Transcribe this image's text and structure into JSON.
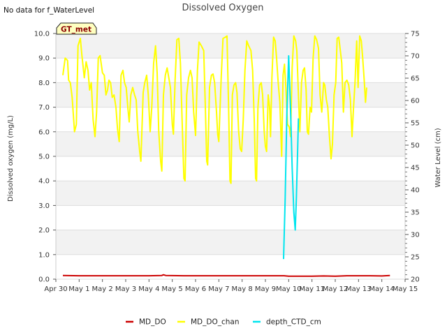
{
  "chart_data": {
    "type": "line",
    "title": "Dissolved Oxygen",
    "note": "No data for f_WaterLevel",
    "badge": "GT_met",
    "ylabel": "Dissolved oxygen (mg/L)",
    "y2label": "Water Level (cm)",
    "xlim": [
      "2024-04-30",
      "2024-05-15"
    ],
    "x_ticks": [
      "Apr 30",
      "May 1",
      "May 2",
      "May 3",
      "May 4",
      "May 5",
      "May 6",
      "May 7",
      "May 8",
      "May 9",
      "May 10",
      "May 11",
      "May 12",
      "May 13",
      "May 14",
      "May 15"
    ],
    "ylim": [
      0,
      10
    ],
    "y_ticks": [
      "0.0",
      "1.0",
      "2.0",
      "3.0",
      "4.0",
      "5.0",
      "6.0",
      "7.0",
      "8.0",
      "9.0",
      "10.0"
    ],
    "y2lim": [
      20,
      75
    ],
    "y2_ticks": [
      "20",
      "25",
      "30",
      "35",
      "40",
      "45",
      "50",
      "55",
      "60",
      "65",
      "70",
      "75"
    ],
    "grid": "horizontal bands",
    "legend_position": "bottom",
    "colors": {
      "MD_DO": "#cc0000",
      "MD_DO_chan": "#ffff00",
      "depth_CTD_cm": "#00e5ee"
    },
    "series": [
      {
        "name": "MD_DO",
        "axis": "left",
        "color": "#cc0000",
        "points": [
          [
            0.3,
            0.15
          ],
          [
            1.0,
            0.14
          ],
          [
            2.0,
            0.14
          ],
          [
            3.0,
            0.14
          ],
          [
            4.0,
            0.14
          ],
          [
            4.55,
            0.15
          ],
          [
            4.62,
            0.18
          ],
          [
            4.72,
            0.15
          ],
          [
            5.5,
            0.14
          ],
          [
            7.0,
            0.14
          ],
          [
            8.5,
            0.14
          ],
          [
            9.8,
            0.14
          ],
          [
            10.0,
            0.12
          ],
          [
            11.0,
            0.12
          ],
          [
            11.5,
            0.13
          ],
          [
            12.0,
            0.12
          ],
          [
            12.5,
            0.14
          ],
          [
            13.5,
            0.14
          ],
          [
            14.0,
            0.13
          ],
          [
            14.35,
            0.15
          ]
        ]
      },
      {
        "name": "MD_DO_chan",
        "axis": "left",
        "color": "#ffff00",
        "points": [
          [
            0.3,
            8.3
          ],
          [
            0.4,
            9.0
          ],
          [
            0.5,
            8.9
          ],
          [
            0.55,
            8.1
          ],
          [
            0.62,
            8.0
          ],
          [
            0.7,
            7.4
          ],
          [
            0.8,
            6.0
          ],
          [
            0.88,
            6.3
          ],
          [
            0.95,
            9.5
          ],
          [
            1.05,
            9.8
          ],
          [
            1.12,
            9.1
          ],
          [
            1.22,
            8.2
          ],
          [
            1.3,
            8.85
          ],
          [
            1.38,
            8.5
          ],
          [
            1.45,
            7.7
          ],
          [
            1.52,
            8.0
          ],
          [
            1.6,
            6.5
          ],
          [
            1.68,
            5.8
          ],
          [
            1.75,
            6.8
          ],
          [
            1.82,
            9.0
          ],
          [
            1.9,
            9.1
          ],
          [
            2.0,
            8.4
          ],
          [
            2.08,
            8.3
          ],
          [
            2.15,
            7.5
          ],
          [
            2.22,
            7.7
          ],
          [
            2.28,
            8.1
          ],
          [
            2.35,
            8.0
          ],
          [
            2.42,
            7.4
          ],
          [
            2.5,
            7.5
          ],
          [
            2.58,
            7.0
          ],
          [
            2.65,
            6.1
          ],
          [
            2.72,
            5.6
          ],
          [
            2.8,
            8.3
          ],
          [
            2.88,
            8.5
          ],
          [
            2.95,
            8.0
          ],
          [
            3.02,
            7.8
          ],
          [
            3.1,
            6.9
          ],
          [
            3.15,
            6.4
          ],
          [
            3.22,
            7.5
          ],
          [
            3.3,
            7.8
          ],
          [
            3.38,
            7.5
          ],
          [
            3.45,
            7.3
          ],
          [
            3.52,
            6.0
          ],
          [
            3.6,
            5.2
          ],
          [
            3.65,
            4.8
          ],
          [
            3.75,
            7.6
          ],
          [
            3.82,
            8.0
          ],
          [
            3.9,
            8.3
          ],
          [
            3.97,
            7.5
          ],
          [
            4.05,
            6.0
          ],
          [
            4.12,
            7.0
          ],
          [
            4.2,
            8.8
          ],
          [
            4.28,
            9.5
          ],
          [
            4.35,
            8.4
          ],
          [
            4.42,
            6.0
          ],
          [
            4.5,
            4.8
          ],
          [
            4.55,
            4.4
          ],
          [
            4.62,
            7.5
          ],
          [
            4.7,
            8.3
          ],
          [
            4.78,
            8.6
          ],
          [
            4.85,
            8.2
          ],
          [
            4.92,
            7.8
          ],
          [
            5.0,
            6.3
          ],
          [
            5.05,
            5.9
          ],
          [
            5.12,
            8.1
          ],
          [
            5.2,
            9.75
          ],
          [
            5.28,
            9.8
          ],
          [
            5.35,
            8.8
          ],
          [
            5.42,
            6.5
          ],
          [
            5.5,
            4.1
          ],
          [
            5.55,
            4.0
          ],
          [
            5.62,
            7.5
          ],
          [
            5.7,
            8.2
          ],
          [
            5.78,
            8.5
          ],
          [
            5.85,
            8.2
          ],
          [
            5.92,
            6.8
          ],
          [
            6.0,
            5.85
          ],
          [
            6.08,
            8.5
          ],
          [
            6.15,
            9.65
          ],
          [
            6.25,
            9.5
          ],
          [
            6.35,
            9.3
          ],
          [
            6.42,
            7.0
          ],
          [
            6.48,
            4.8
          ],
          [
            6.52,
            4.65
          ],
          [
            6.6,
            7.8
          ],
          [
            6.68,
            8.3
          ],
          [
            6.75,
            8.35
          ],
          [
            6.82,
            8.0
          ],
          [
            6.9,
            6.8
          ],
          [
            6.95,
            5.9
          ],
          [
            7.0,
            5.6
          ],
          [
            7.1,
            8.2
          ],
          [
            7.18,
            9.8
          ],
          [
            7.28,
            9.85
          ],
          [
            7.35,
            9.9
          ],
          [
            7.42,
            7.0
          ],
          [
            7.48,
            4.0
          ],
          [
            7.52,
            3.9
          ],
          [
            7.58,
            7.5
          ],
          [
            7.65,
            7.9
          ],
          [
            7.72,
            8.0
          ],
          [
            7.78,
            7.6
          ],
          [
            7.85,
            6.0
          ],
          [
            7.92,
            5.3
          ],
          [
            7.98,
            5.2
          ],
          [
            8.05,
            6.5
          ],
          [
            8.12,
            8.5
          ],
          [
            8.2,
            9.7
          ],
          [
            8.28,
            9.5
          ],
          [
            8.38,
            9.3
          ],
          [
            8.45,
            8.5
          ],
          [
            8.52,
            6.5
          ],
          [
            8.58,
            4.1
          ],
          [
            8.62,
            4.0
          ],
          [
            8.68,
            7.0
          ],
          [
            8.75,
            7.9
          ],
          [
            8.82,
            8.0
          ],
          [
            8.88,
            7.5
          ],
          [
            8.95,
            6.0
          ],
          [
            9.0,
            5.4
          ],
          [
            9.05,
            5.2
          ],
          [
            9.12,
            7.5
          ],
          [
            9.18,
            7.0
          ],
          [
            9.22,
            5.8
          ],
          [
            9.28,
            8.2
          ],
          [
            9.35,
            9.85
          ],
          [
            9.42,
            9.7
          ],
          [
            9.48,
            9.0
          ],
          [
            9.55,
            8.0
          ],
          [
            9.62,
            7.2
          ],
          [
            9.7,
            5.0
          ],
          [
            9.76,
            8.3
          ],
          [
            9.82,
            8.75
          ],
          [
            9.88,
            7.8
          ],
          [
            9.95,
            6.3
          ],
          [
            10.02,
            6.2
          ],
          [
            10.08,
            5.8
          ],
          [
            10.15,
            8.6
          ],
          [
            10.22,
            9.9
          ],
          [
            10.3,
            9.7
          ],
          [
            10.35,
            9.3
          ],
          [
            10.42,
            7.5
          ],
          [
            10.48,
            6.0
          ],
          [
            10.55,
            8.0
          ],
          [
            10.62,
            8.5
          ],
          [
            10.68,
            8.6
          ],
          [
            10.75,
            7.7
          ],
          [
            10.8,
            6.0
          ],
          [
            10.85,
            5.9
          ],
          [
            10.92,
            7.0
          ],
          [
            10.98,
            6.8
          ],
          [
            11.05,
            9.0
          ],
          [
            11.12,
            9.9
          ],
          [
            11.2,
            9.75
          ],
          [
            11.28,
            9.4
          ],
          [
            11.35,
            7.5
          ],
          [
            11.42,
            6.8
          ],
          [
            11.5,
            8.0
          ],
          [
            11.55,
            7.9
          ],
          [
            11.62,
            7.3
          ],
          [
            11.68,
            7.0
          ],
          [
            11.75,
            5.8
          ],
          [
            11.82,
            4.9
          ],
          [
            11.88,
            5.5
          ],
          [
            11.95,
            7.5
          ],
          [
            12.02,
            8.0
          ],
          [
            12.08,
            9.8
          ],
          [
            12.15,
            9.85
          ],
          [
            12.22,
            9.3
          ],
          [
            12.28,
            8.8
          ],
          [
            12.35,
            6.8
          ],
          [
            12.42,
            8.0
          ],
          [
            12.5,
            8.1
          ],
          [
            12.58,
            7.9
          ],
          [
            12.65,
            7.3
          ],
          [
            12.72,
            5.8
          ],
          [
            12.78,
            6.9
          ],
          [
            12.85,
            8.0
          ],
          [
            12.92,
            9.7
          ],
          [
            12.98,
            7.8
          ],
          [
            13.05,
            9.9
          ],
          [
            13.12,
            9.7
          ],
          [
            13.18,
            9.0
          ],
          [
            13.25,
            8.0
          ],
          [
            13.3,
            7.2
          ],
          [
            13.35,
            7.8
          ]
        ]
      },
      {
        "name": "depth_CTD_cm",
        "axis": "right",
        "color": "#00e5ee",
        "points": [
          [
            9.78,
            24.5
          ],
          [
            9.85,
            38.0
          ],
          [
            9.92,
            57.0
          ],
          [
            10.0,
            70.0
          ],
          [
            10.08,
            58.0
          ],
          [
            10.15,
            45.0
          ],
          [
            10.22,
            35.0
          ],
          [
            10.28,
            31.0
          ],
          [
            10.33,
            38.0
          ],
          [
            10.38,
            48.0
          ],
          [
            10.42,
            56.0
          ]
        ]
      }
    ]
  }
}
